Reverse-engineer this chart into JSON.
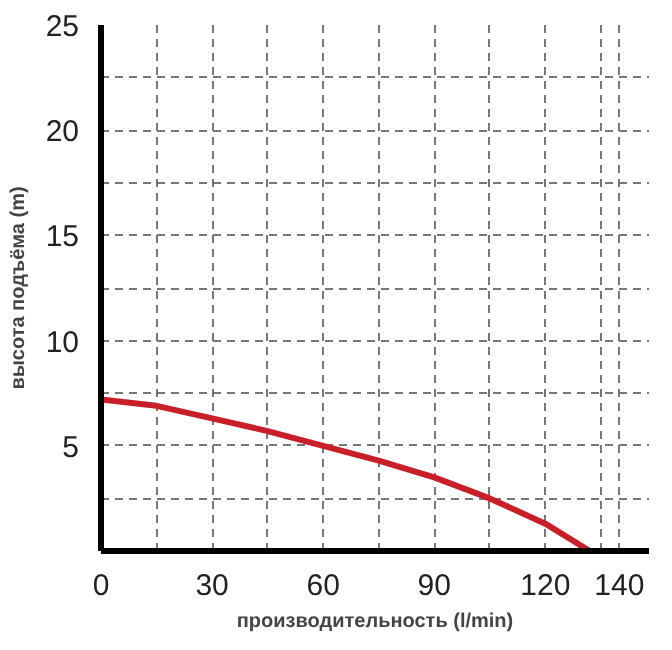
{
  "chart_data": {
    "type": "line",
    "xlabel": "производительность (l/min)",
    "ylabel": "высота подъёма (m)",
    "x": [
      0,
      15,
      30,
      45,
      60,
      75,
      90,
      105,
      120,
      132
    ],
    "series": [
      {
        "color": "#c8202a",
        "values": [
          7.2,
          6.9,
          6.3,
          5.7,
          5.0,
          4.3,
          3.5,
          2.5,
          1.3,
          0
        ]
      }
    ],
    "xlim": [
      0,
      148
    ],
    "ylim": [
      0,
      25
    ],
    "xticks": [
      0,
      {
        "value": 15,
        "label": null
      },
      30,
      {
        "value": 45,
        "label": null
      },
      60,
      {
        "value": 75,
        "label": null
      },
      90,
      {
        "value": 105,
        "label": null
      },
      120,
      {
        "value": 135,
        "label": null
      },
      140
    ],
    "yticks": [
      {
        "value": 2.5,
        "label": null
      },
      5,
      {
        "value": 7.5,
        "label": null
      },
      10,
      {
        "value": 12.5,
        "label": null
      },
      15,
      {
        "value": 17.5,
        "label": null
      },
      20,
      {
        "value": 22.5,
        "label": null
      },
      25
    ],
    "grid": true,
    "line_style": "solid",
    "marker": "none"
  }
}
